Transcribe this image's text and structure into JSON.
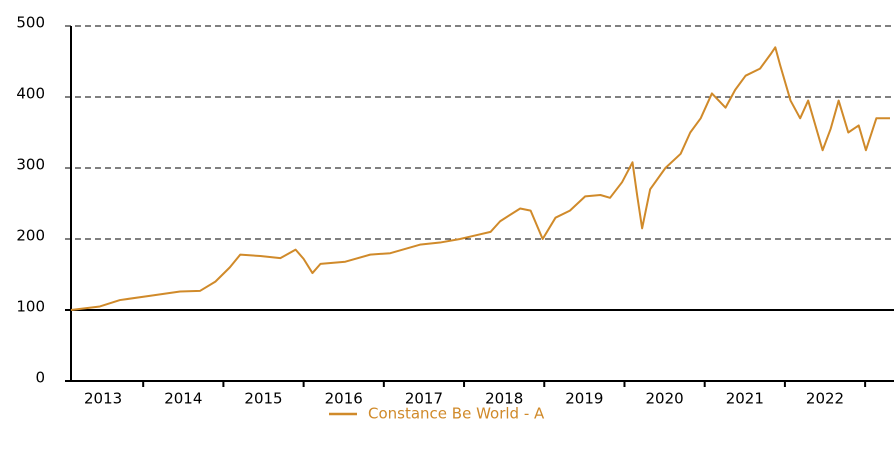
{
  "chart_data": {
    "type": "line",
    "x": [
      2013.1,
      2013.46,
      2013.71,
      2014.09,
      2014.46,
      2014.71,
      2014.9,
      2015.08,
      2015.21,
      2015.46,
      2015.71,
      2015.9,
      2016.0,
      2016.11,
      2016.21,
      2016.52,
      2016.83,
      2017.08,
      2017.45,
      2017.7,
      2017.95,
      2018.14,
      2018.33,
      2018.45,
      2018.7,
      2018.83,
      2018.98,
      2019.14,
      2019.32,
      2019.51,
      2019.7,
      2019.82,
      2019.97,
      2020.1,
      2020.16,
      2020.22,
      2020.32,
      2020.51,
      2020.7,
      2020.82,
      2020.95,
      2021.09,
      2021.26,
      2021.38,
      2021.51,
      2021.69,
      2021.82,
      2021.88,
      2021.94,
      2022.07,
      2022.19,
      2022.29,
      2022.38,
      2022.47,
      2022.57,
      2022.67,
      2022.79,
      2022.92,
      2023.01,
      2023.14,
      2023.31
    ],
    "series": [
      {
        "name": "Constance Be World - A",
        "color": "#d08a2a",
        "values": [
          100,
          105,
          114,
          120,
          126,
          127,
          140,
          160,
          178,
          176,
          173,
          185,
          172,
          152,
          165,
          168,
          178,
          180,
          192,
          195,
          200,
          205,
          210,
          225,
          243,
          240,
          200,
          230,
          240,
          260,
          262,
          258,
          280,
          308,
          260,
          215,
          270,
          300,
          320,
          350,
          370,
          405,
          385,
          410,
          430,
          440,
          460,
          470,
          445,
          395,
          370,
          395,
          360,
          325,
          355,
          395,
          350,
          360,
          325,
          370,
          370
        ]
      }
    ],
    "xlim": [
      2013.1,
      2023.36
    ],
    "xticks": [
      {
        "value": 2013.5,
        "label": "2013"
      },
      {
        "value": 2014.5,
        "label": "2014"
      },
      {
        "value": 2015.5,
        "label": "2015"
      },
      {
        "value": 2016.5,
        "label": "2016"
      },
      {
        "value": 2017.5,
        "label": "2017"
      },
      {
        "value": 2018.5,
        "label": "2018"
      },
      {
        "value": 2019.5,
        "label": "2019"
      },
      {
        "value": 2020.5,
        "label": "2020"
      },
      {
        "value": 2021.5,
        "label": "2021"
      },
      {
        "value": 2022.5,
        "label": "2022"
      }
    ],
    "xminorticks": [
      2014,
      2015,
      2016,
      2017,
      2018,
      2019,
      2020,
      2021,
      2022,
      2023
    ],
    "ylim": [
      0,
      500
    ],
    "yticks": [
      0,
      100,
      200,
      300,
      400,
      500
    ],
    "reference_line": 100,
    "grid": true,
    "legend": "bottom"
  }
}
